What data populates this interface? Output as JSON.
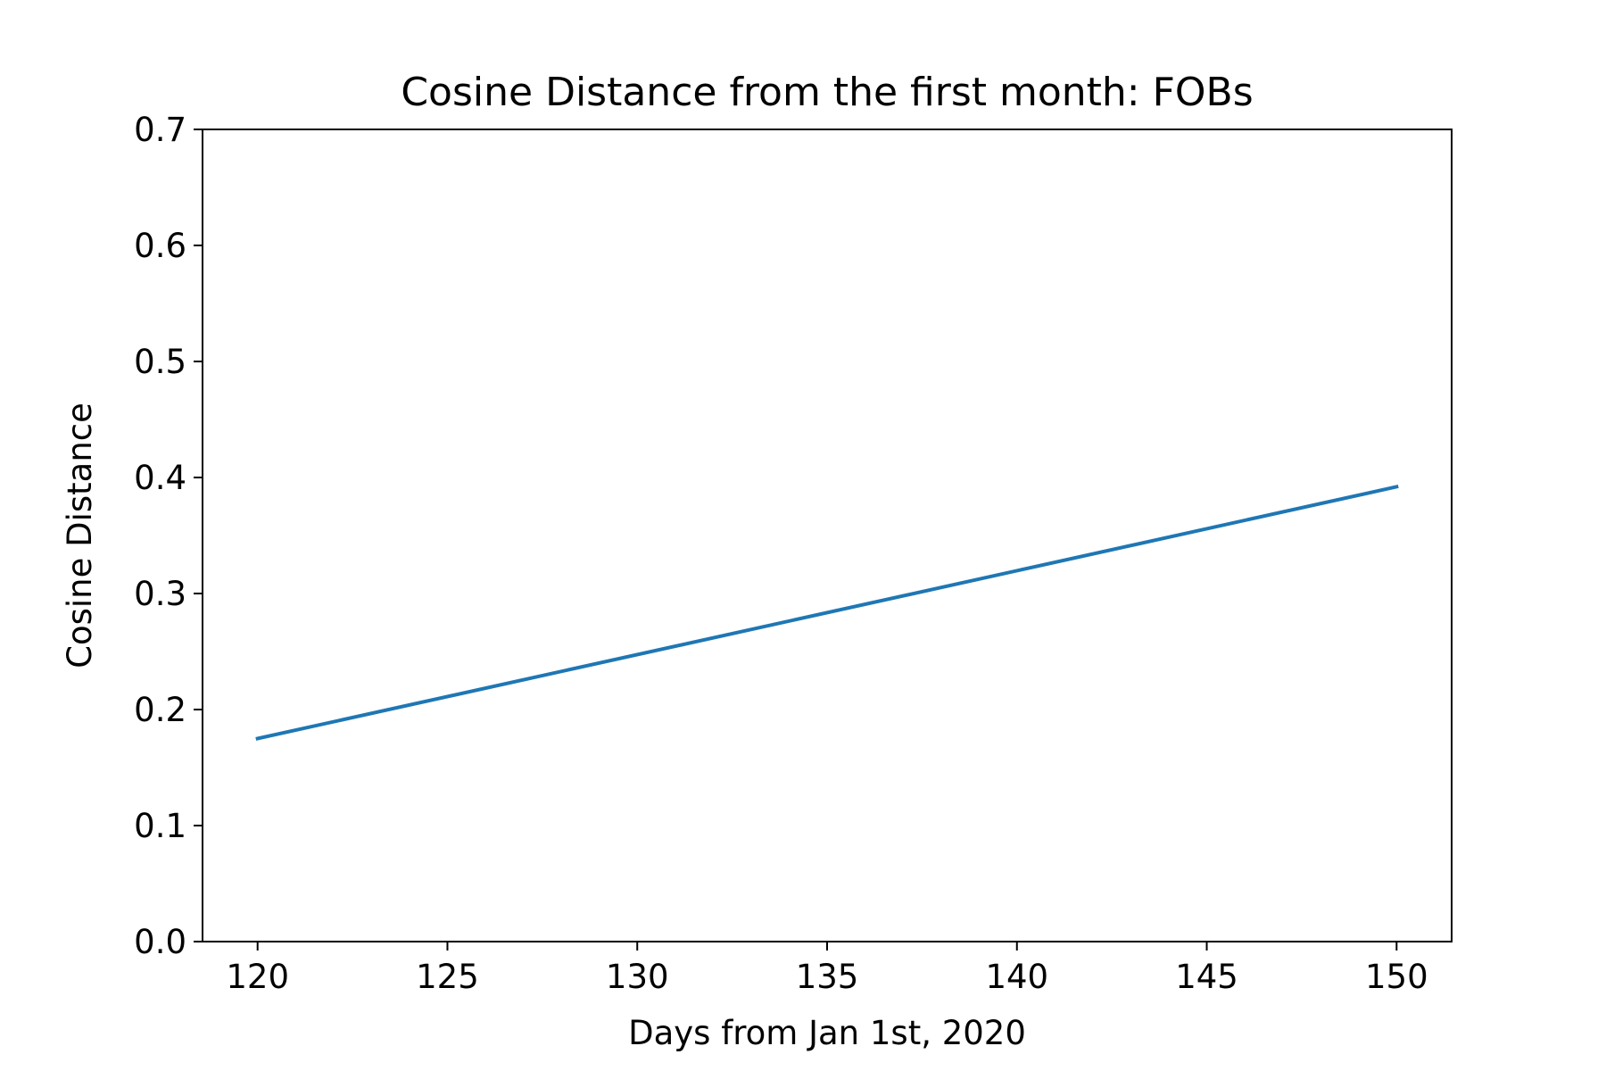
{
  "chart_data": {
    "type": "line",
    "title": "Cosine Distance from the first month: FOBs",
    "xlabel": "Days from Jan 1st, 2020",
    "ylabel": "Cosine Distance",
    "xlim": [
      118.55,
      151.45
    ],
    "ylim": [
      0.0,
      0.7
    ],
    "xticks": [
      120,
      125,
      130,
      135,
      140,
      145,
      150
    ],
    "xtick_labels": [
      "120",
      "125",
      "130",
      "135",
      "140",
      "145",
      "150"
    ],
    "yticks": [
      0.0,
      0.1,
      0.2,
      0.3,
      0.4,
      0.5,
      0.6,
      0.7
    ],
    "ytick_labels": [
      "0.0",
      "0.1",
      "0.2",
      "0.3",
      "0.4",
      "0.5",
      "0.6",
      "0.7"
    ],
    "grid": false,
    "series": [
      {
        "color": "#1f77b4",
        "x": [
          120,
          150
        ],
        "y": [
          0.175,
          0.392
        ]
      }
    ]
  }
}
